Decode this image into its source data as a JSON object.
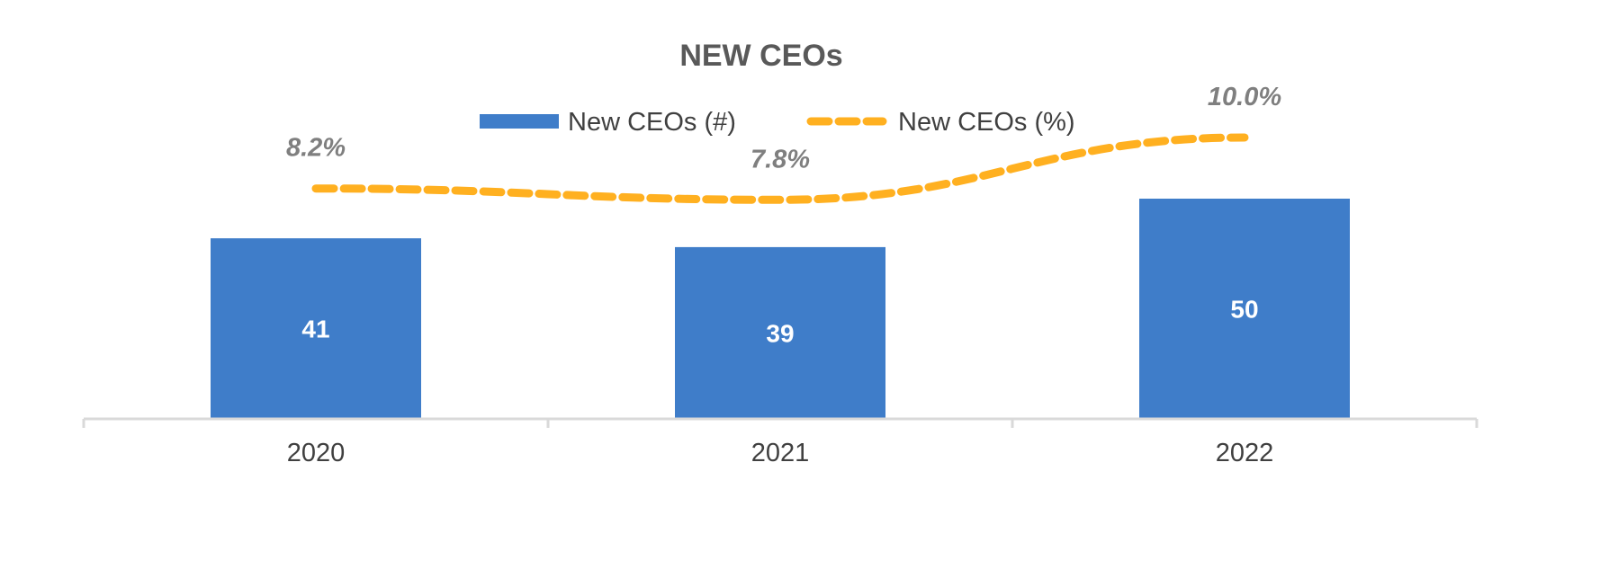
{
  "chart_data": {
    "type": "bar",
    "title": "NEW CEOs",
    "categories": [
      "2020",
      "2021",
      "2022"
    ],
    "series": [
      {
        "name": "New CEOs (#)",
        "type": "bar",
        "color": "#3F7DC9",
        "values": [
          41,
          39,
          50
        ],
        "labels": [
          "41",
          "39",
          "50"
        ]
      },
      {
        "name": "New CEOs (%)",
        "type": "line",
        "style": "dashed",
        "color": "#FFB020",
        "values": [
          8.2,
          7.8,
          10.0
        ],
        "labels": [
          "8.2%",
          "7.8%",
          "10.0%"
        ]
      }
    ],
    "xlabel": "",
    "ylabel": "",
    "legend": "top-center",
    "grid": false
  }
}
